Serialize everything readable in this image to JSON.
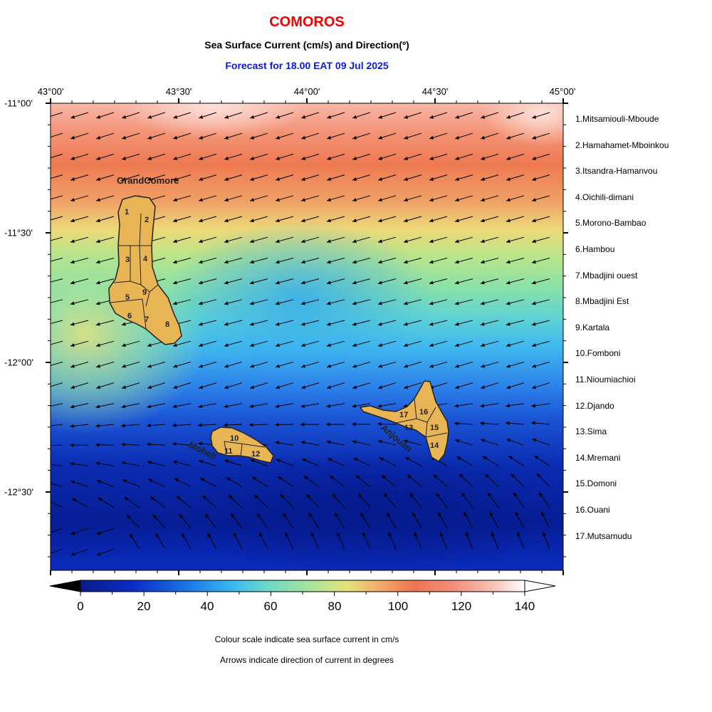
{
  "header": {
    "title": "COMOROS",
    "subtitle": "Sea Surface Current (cm/s) and Direction(º)",
    "forecast": "Forecast for  18.00 EAT 09 Jul 2025"
  },
  "colors": {
    "title": "#f00000",
    "forecast": "#0a1ad8",
    "island_fill": "#e8b555",
    "island_stroke": "#222222"
  },
  "axes": {
    "lon_labels": [
      "43°00'",
      "43°30'",
      "44°00'",
      "44°30'",
      "45°00'"
    ],
    "lat_labels": [
      "-11°00'",
      "-11°30'",
      "-12°00'",
      "-12°30'"
    ]
  },
  "islands": {
    "grande_comore": "GrandComore",
    "moheli": "Moheli",
    "anjouan": "Anjouan",
    "region_numbers": [
      "1",
      "2",
      "3",
      "4",
      "5",
      "6",
      "7",
      "8",
      "9",
      "10",
      "11",
      "12",
      "13",
      "14",
      "15",
      "16",
      "17"
    ]
  },
  "legend": {
    "items": [
      "1.Mitsamiouli-Mboude",
      "2.Hamahamet-Mboinkou",
      "3.Itsandra-Hamanvou",
      "4.Oichili-dimani",
      "5.Morono-Bambao",
      "6.Hambou",
      "7.Mbadjini ouest",
      "8.Mbadjini Est",
      "9.Kartala",
      "10.Fomboni",
      "11.Nioumiachioi",
      "12.Djando",
      "13.Sima",
      "14.Mremani",
      "15.Domoni",
      "16.Ouani",
      "17.Mutsamudu"
    ]
  },
  "colorbar": {
    "labels": [
      "0",
      "20",
      "40",
      "60",
      "80",
      "100",
      "120",
      "140"
    ],
    "unit": "cm/s",
    "min": 0,
    "max": 140
  },
  "notes": {
    "line1": "Colour scale indicate sea surface current in cm/s",
    "line2": "Arrows indicate direction of current in degrees"
  }
}
